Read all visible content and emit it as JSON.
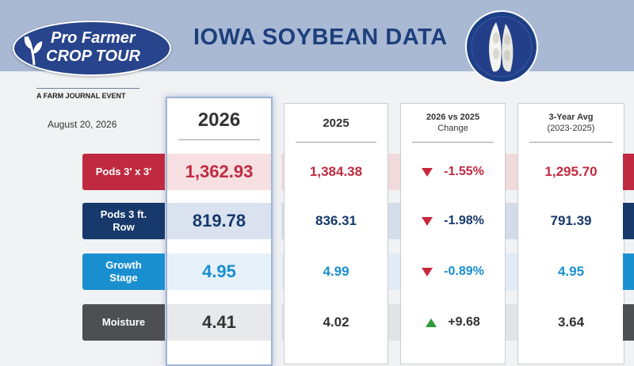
{
  "header": {
    "title": "IOWA SOYBEAN DATA",
    "logo_line1": "Pro Farmer",
    "logo_line2": "CROP TOUR",
    "tagline": "A FARM JOURNAL EVENT",
    "date": "August 20, 2026"
  },
  "columns": {
    "c2026": "2026",
    "c2025": "2025",
    "change_title": "2026 vs 2025",
    "change_sub": "Change",
    "avg_title": "3-Year Avg",
    "avg_sub": "(2023-2025)"
  },
  "rows": [
    {
      "label_line1": "Pods 3′ x 3′",
      "label_line2": "",
      "v2026": "1,362.93",
      "v2025": "1,384.38",
      "change": "-1.55%",
      "direction": "down",
      "avg": "1,295.70",
      "color": "#c02a40",
      "band": "#efc7c9",
      "text_color": "#c02a40"
    },
    {
      "label_line1": "Pods 3 ft.",
      "label_line2": "Row",
      "v2026": "819.78",
      "v2025": "836.31",
      "change": "-1.98%",
      "direction": "down",
      "avg": "791.39",
      "color": "#17396b",
      "band": "#bccbe2",
      "text_color": "#17396b"
    },
    {
      "label_line1": "Growth",
      "label_line2": "Stage",
      "v2026": "4.95",
      "v2025": "4.99",
      "change": "-0.89%",
      "direction": "down",
      "avg": "4.95",
      "color": "#1a8fd0",
      "band": "#d1e6f6",
      "text_color": "#1a8fd0"
    },
    {
      "label_line1": "Moisture",
      "label_line2": "",
      "v2026": "4.41",
      "v2025": "4.02",
      "change": "+9.68",
      "direction": "up",
      "avg": "3.64",
      "color": "#4d4f52",
      "band": "#d6d7d9",
      "text_color": "#333333"
    }
  ]
}
